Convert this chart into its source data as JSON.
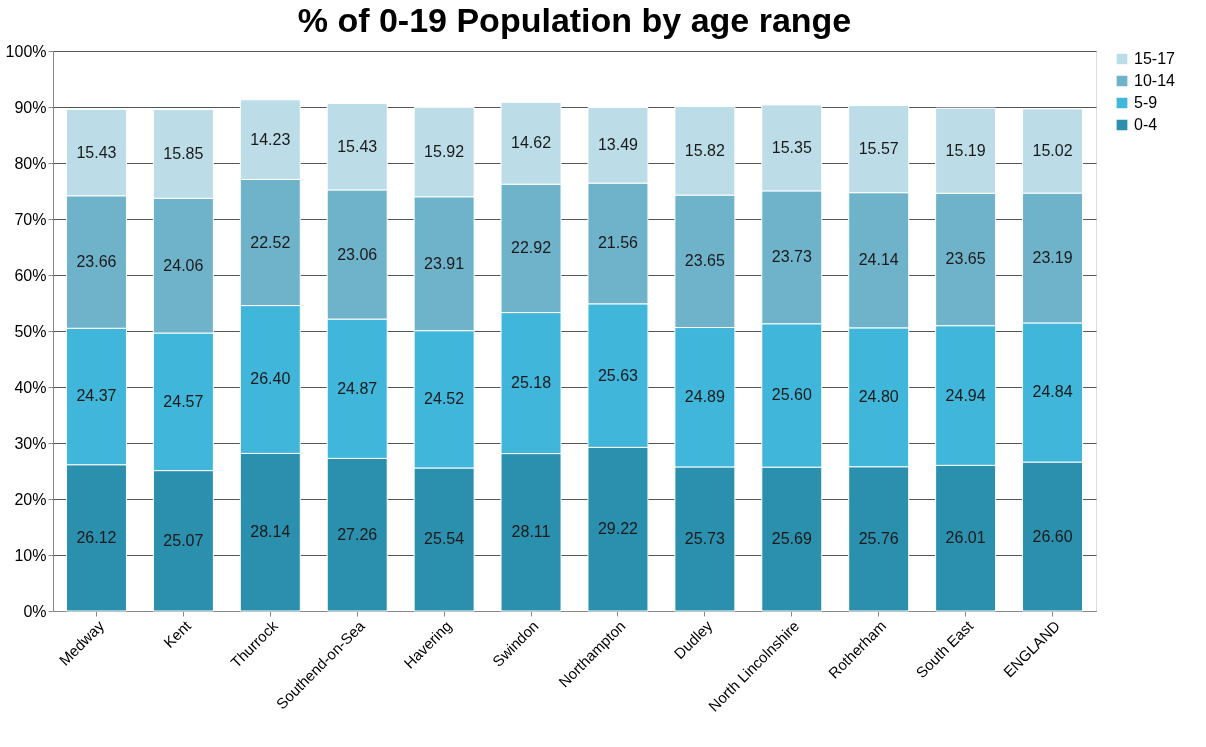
{
  "chart_data": {
    "type": "bar",
    "title": "% of 0-19 Population by age range",
    "stacked": true,
    "categories": [
      "Medway",
      "Kent",
      "Thurrock",
      "Southend-on-Sea",
      "Havering",
      "Swindon",
      "Northampton",
      "Dudley",
      "North Lincolnshire",
      "Rotherham",
      "South East",
      "ENGLAND"
    ],
    "series": [
      {
        "name": "0-4",
        "color": "#2b8fae",
        "values": [
          26.12,
          25.07,
          28.14,
          27.26,
          25.54,
          28.11,
          29.22,
          25.73,
          25.69,
          25.76,
          26.01,
          26.6
        ],
        "value_labels": [
          "26.12",
          "25.07",
          "28.14",
          "27.26",
          "25.54",
          "28.11",
          "29.22",
          "25.73",
          "25.69",
          "25.76",
          "26.01",
          "26.60"
        ]
      },
      {
        "name": "5-9",
        "color": "#3fb6da",
        "values": [
          24.37,
          24.57,
          26.4,
          24.87,
          24.52,
          25.18,
          25.63,
          24.89,
          25.6,
          24.8,
          24.94,
          24.84
        ],
        "value_labels": [
          "24.37",
          "24.57",
          "26.40",
          "24.87",
          "24.52",
          "25.18",
          "25.63",
          "24.89",
          "25.60",
          "24.80",
          "24.94",
          "24.84"
        ]
      },
      {
        "name": "10-14",
        "color": "#6fb3cb",
        "values": [
          23.66,
          24.06,
          22.52,
          23.06,
          23.91,
          22.92,
          21.56,
          23.65,
          23.73,
          24.14,
          23.65,
          23.19
        ],
        "value_labels": [
          "23.66",
          "24.06",
          "22.52",
          "23.06",
          "23.91",
          "22.92",
          "21.56",
          "23.65",
          "23.73",
          "24.14",
          "23.65",
          "23.19"
        ]
      },
      {
        "name": "15-17",
        "color": "#bcdde8",
        "values": [
          15.43,
          15.85,
          14.23,
          15.43,
          15.92,
          14.62,
          13.49,
          15.82,
          15.35,
          15.57,
          15.19,
          15.02
        ],
        "value_labels": [
          "15.43",
          "15.85",
          "14.23",
          "15.43",
          "15.92",
          "14.62",
          "13.49",
          "15.82",
          "15.35",
          "15.57",
          "15.19",
          "15.02"
        ]
      }
    ],
    "ylim": [
      0,
      100
    ],
    "yticks": [
      {
        "value": 0,
        "label": "0%"
      },
      {
        "value": 10,
        "label": "10%"
      },
      {
        "value": 20,
        "label": "20%"
      },
      {
        "value": 30,
        "label": "30%"
      },
      {
        "value": 40,
        "label": "40%"
      },
      {
        "value": 50,
        "label": "50%"
      },
      {
        "value": 60,
        "label": "60%"
      },
      {
        "value": 70,
        "label": "70%"
      },
      {
        "value": 80,
        "label": "80%"
      },
      {
        "value": 90,
        "label": "90%"
      },
      {
        "value": 100,
        "label": "100%"
      }
    ],
    "grid": "y",
    "legend": "right"
  }
}
